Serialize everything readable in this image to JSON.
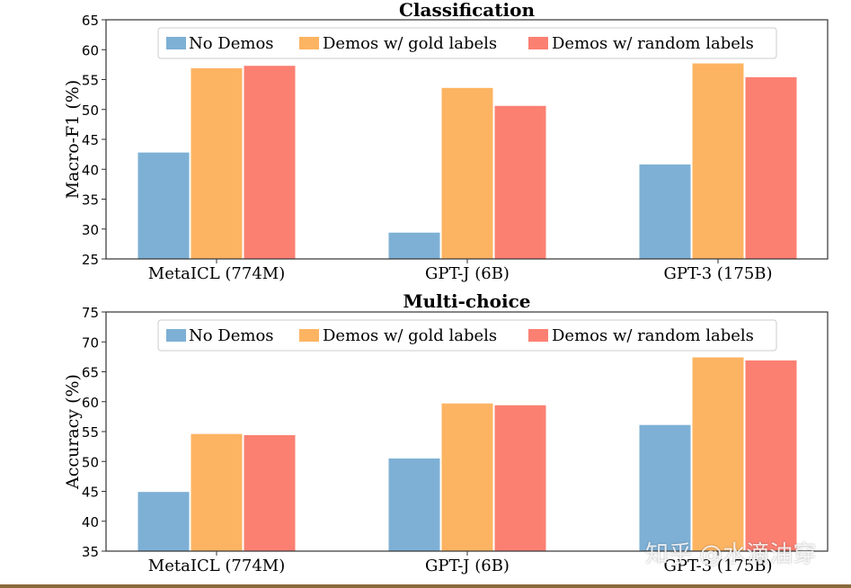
{
  "colors": {
    "no_demos": "#7eb0d5",
    "gold": "#fdb462",
    "random": "#fb8072",
    "axis": "#333333",
    "legend_border": "#cccccc"
  },
  "watermark": "知乎 @水滴油穿",
  "chart_data": [
    {
      "type": "bar",
      "title": "Classification",
      "ylabel": "Macro-F1 (%)",
      "xlabel": "",
      "categories": [
        "MetaICL (774M)",
        "GPT-J (6B)",
        "GPT-3 (175B)"
      ],
      "ylim": [
        25,
        65
      ],
      "yticks": [
        25,
        30,
        35,
        40,
        45,
        50,
        55,
        60,
        65
      ],
      "legend_position": "top-center",
      "grid": false,
      "series": [
        {
          "name": "No Demos",
          "color_key": "no_demos",
          "values": [
            42.8,
            29.4,
            40.8
          ]
        },
        {
          "name": "Demos w/ gold labels",
          "color_key": "gold",
          "values": [
            56.9,
            53.6,
            57.7
          ]
        },
        {
          "name": "Demos w/ random labels",
          "color_key": "random",
          "values": [
            57.3,
            50.6,
            55.4
          ]
        }
      ]
    },
    {
      "type": "bar",
      "title": "Multi-choice",
      "ylabel": "Accuracy (%)",
      "xlabel": "",
      "categories": [
        "MetaICL (774M)",
        "GPT-J (6B)",
        "GPT-3 (175B)"
      ],
      "ylim": [
        35,
        75
      ],
      "yticks": [
        35,
        40,
        45,
        50,
        55,
        60,
        65,
        70,
        75
      ],
      "legend_position": "top-center",
      "grid": false,
      "series": [
        {
          "name": "No Demos",
          "color_key": "no_demos",
          "values": [
            44.9,
            50.5,
            56.1
          ]
        },
        {
          "name": "Demos w/ gold labels",
          "color_key": "gold",
          "values": [
            54.6,
            59.7,
            67.4
          ]
        },
        {
          "name": "Demos w/ random labels",
          "color_key": "random",
          "values": [
            54.4,
            59.4,
            66.9
          ]
        }
      ]
    }
  ]
}
